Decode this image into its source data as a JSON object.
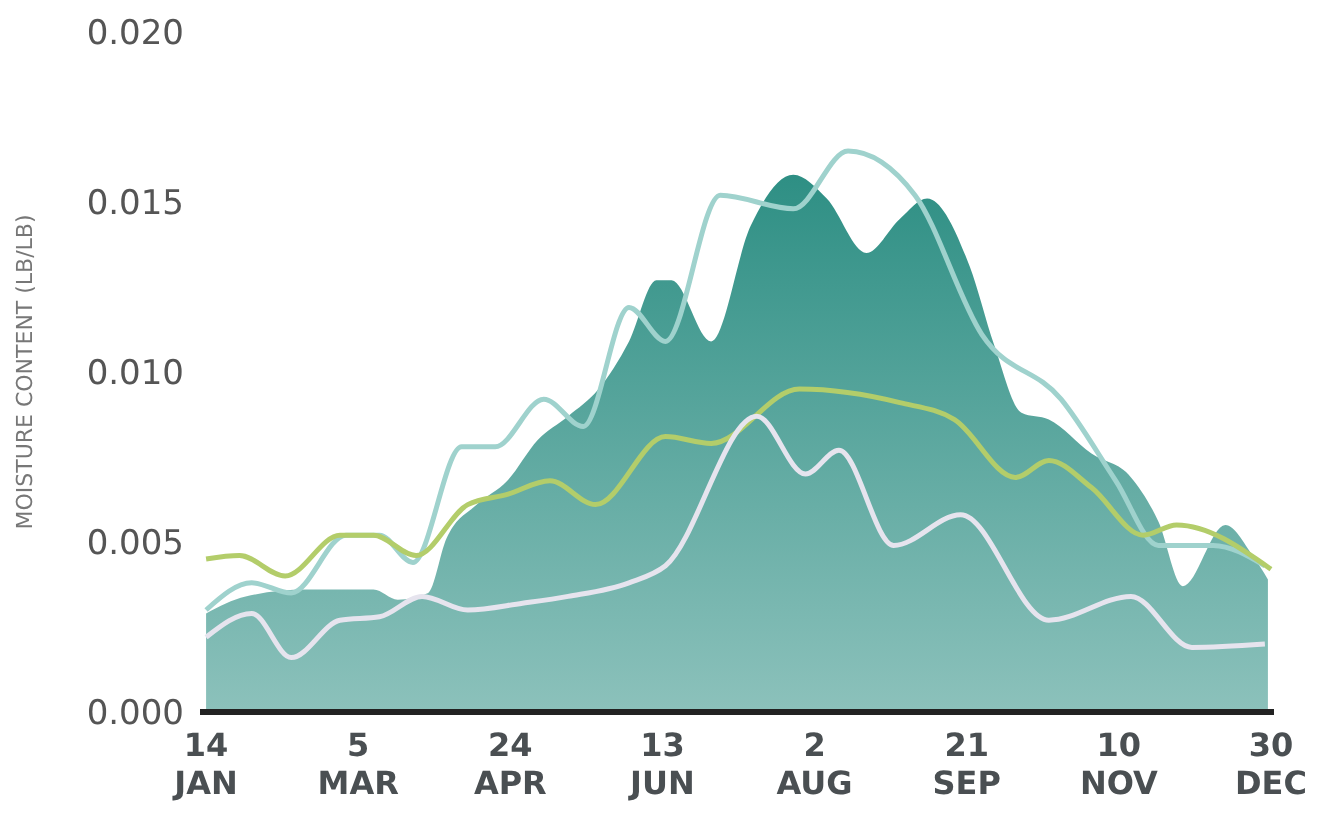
{
  "chart_data": {
    "type": "line",
    "ylabel": "MOISTURE CONTENT (LB/LB)",
    "ylim": [
      0,
      0.02
    ],
    "yticks": [
      {
        "value": 0,
        "label": "0.000"
      },
      {
        "value": 0.005,
        "label": "0.005"
      },
      {
        "value": 0.01,
        "label": "0.010"
      },
      {
        "value": 0.015,
        "label": "0.015"
      },
      {
        "value": 0.02,
        "label": "0.020"
      }
    ],
    "xlim": [
      "--01-12",
      "--12-31"
    ],
    "xticks": [
      {
        "value": "--01-14",
        "label": "14 JAN"
      },
      {
        "value": "--03-05",
        "label": "5 MAR"
      },
      {
        "value": "--04-24",
        "label": "24 APR"
      },
      {
        "value": "--06-13",
        "label": "13 JUN"
      },
      {
        "value": "--08-02",
        "label": "2 AUG"
      },
      {
        "value": "--09-21",
        "label": "21 SEP"
      },
      {
        "value": "--11-10",
        "label": "10 NOV"
      },
      {
        "value": "--12-30",
        "label": "30 DEC"
      }
    ],
    "marker": "none",
    "line_style": "solid",
    "series": [
      {
        "type": "area",
        "color": "#2e8f84",
        "x": [
          "--01-14",
          "--01-27",
          "--02-16",
          "--03-10",
          "--03-18",
          "--03-28",
          "--04-03",
          "--04-13",
          "--04-23",
          "--05-03",
          "--05-13",
          "--05-23",
          "--06-02",
          "--06-11",
          "--06-16",
          "--06-29",
          "--07-12",
          "--07-26",
          "--08-06",
          "--08-19",
          "--08-30",
          "--09-08",
          "--09-22",
          "--09-30",
          "--10-09",
          "--10-18",
          "--11-01",
          "--11-14",
          "--11-23",
          "--12-01",
          "--12-15",
          "--12-24",
          "--12-29"
        ],
        "values": [
          0.0029,
          0.0034,
          0.0036,
          0.0036,
          0.0033,
          0.0035,
          0.0051,
          0.0061,
          0.0068,
          0.008,
          0.0087,
          0.0095,
          0.0109,
          0.0127,
          0.0127,
          0.0109,
          0.0143,
          0.0158,
          0.0151,
          0.0135,
          0.0145,
          0.0151,
          0.0131,
          0.0108,
          0.0088,
          0.0086,
          0.0076,
          0.0069,
          0.0056,
          0.0037,
          0.0055,
          0.0046,
          0.0039
        ]
      },
      {
        "color": "#9fd2cd",
        "x": [
          "--01-14",
          "--01-29",
          "--02-11",
          "--03-01",
          "--03-12",
          "--03-23",
          "--04-08",
          "--04-19",
          "--05-05",
          "--05-18",
          "--06-02",
          "--06-14",
          "--07-02",
          "--07-26",
          "--08-13",
          "--09-04",
          "--09-26",
          "--10-22",
          "--11-09",
          "--11-23",
          "--12-11",
          "--12-28"
        ],
        "values": [
          0.003,
          0.0038,
          0.0035,
          0.0052,
          0.0052,
          0.0044,
          0.0078,
          0.0078,
          0.0092,
          0.0084,
          0.0119,
          0.0109,
          0.0152,
          0.0148,
          0.0165,
          0.0152,
          0.0111,
          0.0092,
          0.0068,
          0.0049,
          0.0049,
          0.0043
        ]
      },
      {
        "color": "#b3cd6a",
        "x": [
          "--01-14",
          "--01-25",
          "--02-09",
          "--02-27",
          "--03-10",
          "--03-24",
          "--04-10",
          "--04-23",
          "--05-07",
          "--05-22",
          "--06-14",
          "--06-29",
          "--07-28",
          "--08-30",
          "--09-17",
          "--10-07",
          "--10-18",
          "--11-01",
          "--11-18",
          "--11-29",
          "--12-30"
        ],
        "values": [
          0.0045,
          0.0046,
          0.004,
          0.0052,
          0.0052,
          0.0046,
          0.0061,
          0.0064,
          0.0068,
          0.0061,
          0.0081,
          0.0079,
          0.0095,
          0.0091,
          0.0086,
          0.0069,
          0.0074,
          0.0066,
          0.0052,
          0.0055,
          0.0042
        ]
      },
      {
        "color": "#e6e4ee",
        "x": [
          "--01-14",
          "--01-29",
          "--02-11",
          "--02-27",
          "--03-12",
          "--03-26",
          "--04-10",
          "--04-28",
          "--05-13",
          "--06-02",
          "--06-14",
          "--07-14",
          "--07-30",
          "--08-10",
          "--08-28",
          "--09-19",
          "--10-18",
          "--11-14",
          "--12-04",
          "--12-28"
        ],
        "values": [
          0.0022,
          0.0029,
          0.0016,
          0.0027,
          0.0028,
          0.0034,
          0.003,
          0.0032,
          0.0034,
          0.0038,
          0.0043,
          0.0087,
          0.007,
          0.0077,
          0.0049,
          0.0058,
          0.0027,
          0.0034,
          0.0019,
          0.002
        ]
      }
    ]
  }
}
